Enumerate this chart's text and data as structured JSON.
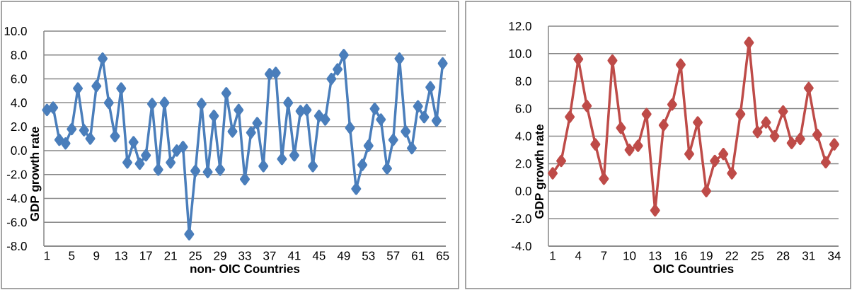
{
  "chart_data": [
    {
      "type": "line",
      "xlabel": "non- OIC Countries",
      "ylabel": "GDP growth rate",
      "marker": "diamond",
      "grid": "y",
      "categories": [
        "1",
        null,
        null,
        null,
        "5",
        null,
        null,
        null,
        "9",
        null,
        null,
        null,
        "13",
        null,
        null,
        null,
        "17",
        null,
        null,
        null,
        "21",
        null,
        null,
        null,
        "25",
        null,
        null,
        null,
        "29",
        null,
        null,
        null,
        "33",
        null,
        null,
        null,
        "37",
        null,
        null,
        null,
        "41",
        null,
        null,
        null,
        "45",
        null,
        null,
        null,
        "49",
        null,
        null,
        null,
        "53",
        null,
        null,
        null,
        "57",
        null,
        null,
        null,
        "61",
        null,
        null,
        null,
        "65"
      ],
      "ylim": [
        -8,
        10
      ],
      "yticks": [
        {
          "value": -8,
          "label": "-8.0"
        },
        {
          "value": -6,
          "label": "-6.0"
        },
        {
          "value": -4,
          "label": "-4.0"
        },
        {
          "value": -2,
          "label": "-2.0"
        },
        {
          "value": 0,
          "label": "0.0"
        },
        {
          "value": 2,
          "label": "2.0"
        },
        {
          "value": 4,
          "label": "4.0"
        },
        {
          "value": 6,
          "label": "6.0"
        },
        {
          "value": 8,
          "label": "8.0"
        },
        {
          "value": 10,
          "label": "10.0"
        }
      ],
      "series": [
        {
          "color": "#4a7ebb",
          "values": [
            3.4,
            3.6,
            0.9,
            0.6,
            1.8,
            5.2,
            1.7,
            1.0,
            5.4,
            7.7,
            4.0,
            1.2,
            5.2,
            -1.0,
            0.7,
            -1.1,
            -0.4,
            3.9,
            -1.6,
            4.0,
            -1.0,
            0.0,
            0.3,
            -7.0,
            -1.7,
            3.9,
            -1.8,
            2.9,
            -1.6,
            4.8,
            1.6,
            3.4,
            -2.4,
            1.5,
            2.3,
            -1.3,
            6.4,
            6.5,
            -0.7,
            4.0,
            -0.4,
            3.3,
            3.4,
            -1.3,
            2.9,
            2.6,
            6.0,
            6.8,
            8.0,
            1.9,
            -3.2,
            -1.2,
            0.4,
            3.5,
            2.6,
            -1.5,
            0.9,
            7.7,
            1.6,
            0.2,
            3.7,
            2.8,
            5.3,
            2.5,
            7.3
          ]
        }
      ]
    },
    {
      "type": "line",
      "xlabel": "OIC Countries",
      "ylabel": "GDP growth rate",
      "marker": "diamond",
      "grid": "y",
      "categories": [
        "1",
        null,
        null,
        "4",
        null,
        null,
        "7",
        null,
        null,
        "10",
        null,
        null,
        "13",
        null,
        null,
        "16",
        null,
        null,
        "19",
        null,
        null,
        "22",
        null,
        null,
        "25",
        null,
        null,
        "28",
        null,
        null,
        "31",
        null,
        null,
        "34"
      ],
      "ylim": [
        -4,
        12
      ],
      "yticks": [
        {
          "value": -4,
          "label": "-4.0"
        },
        {
          "value": -2,
          "label": "-2.0"
        },
        {
          "value": 0,
          "label": "0.0"
        },
        {
          "value": 2,
          "label": "2.0"
        },
        {
          "value": 4,
          "label": "4.0"
        },
        {
          "value": 6,
          "label": "6.0"
        },
        {
          "value": 8,
          "label": "8.0"
        },
        {
          "value": 10,
          "label": "10.0"
        },
        {
          "value": 12,
          "label": "12.0"
        }
      ],
      "series": [
        {
          "color": "#be4b48",
          "values": [
            1.3,
            2.2,
            5.4,
            9.6,
            6.2,
            3.4,
            0.9,
            9.5,
            4.6,
            3.0,
            3.3,
            5.6,
            -1.4,
            4.8,
            6.3,
            9.2,
            2.7,
            5.0,
            0.0,
            2.2,
            2.7,
            1.3,
            5.6,
            10.8,
            4.3,
            5.0,
            4.0,
            5.8,
            3.5,
            3.8,
            7.5,
            4.1,
            2.1,
            3.4
          ]
        }
      ]
    }
  ]
}
